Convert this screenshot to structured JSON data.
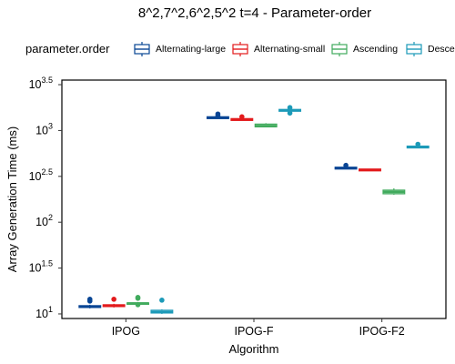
{
  "chart_data": {
    "type": "box",
    "title": "8^2,7^2,6^2,5^2 t=4 - Parameter-order",
    "xlabel": "Algorithm",
    "ylabel": "Array Generation Time (ms)",
    "yscale": "log10",
    "ylim_log10": [
      0.95,
      3.55
    ],
    "y_ticks": [
      {
        "log": 1.0,
        "base": "10",
        "exp": "1"
      },
      {
        "log": 1.5,
        "base": "10",
        "exp": "1.5"
      },
      {
        "log": 2.0,
        "base": "10",
        "exp": "2"
      },
      {
        "log": 2.5,
        "base": "10",
        "exp": "2.5"
      },
      {
        "log": 3.0,
        "base": "10",
        "exp": "3"
      },
      {
        "log": 3.5,
        "base": "10",
        "exp": "3.5"
      }
    ],
    "categories": [
      "IPOG",
      "IPOG-F",
      "IPOG-F2"
    ],
    "legend": {
      "title": "parameter.order",
      "position": "top"
    },
    "series": [
      {
        "name": "Alternating-large",
        "color": "#084594",
        "boxes": [
          {
            "q1": 1.07,
            "median": 1.08,
            "q3": 1.09,
            "whisker_low": 1.06,
            "whisker_high": 1.1,
            "outliers": [
              1.14,
              1.16
            ]
          },
          {
            "q1": 3.13,
            "median": 3.14,
            "q3": 3.15,
            "whisker_low": 3.13,
            "whisker_high": 3.15,
            "outliers": [
              3.16,
              3.18
            ]
          },
          {
            "q1": 2.58,
            "median": 2.59,
            "q3": 2.6,
            "whisker_low": 2.58,
            "whisker_high": 2.6,
            "outliers": [
              2.62
            ]
          }
        ]
      },
      {
        "name": "Alternating-small",
        "color": "#e31a1c",
        "boxes": [
          {
            "q1": 1.08,
            "median": 1.09,
            "q3": 1.1,
            "whisker_low": 1.07,
            "whisker_high": 1.11,
            "outliers": [
              1.16
            ]
          },
          {
            "q1": 3.11,
            "median": 3.12,
            "q3": 3.13,
            "whisker_low": 3.11,
            "whisker_high": 3.13,
            "outliers": [
              3.15
            ]
          },
          {
            "q1": 2.56,
            "median": 2.57,
            "q3": 2.58,
            "whisker_low": 2.56,
            "whisker_high": 2.58,
            "outliers": []
          }
        ]
      },
      {
        "name": "Ascending",
        "color": "#41ab5d",
        "boxes": [
          {
            "q1": 1.11,
            "median": 1.115,
            "q3": 1.12,
            "whisker_low": 1.1,
            "whisker_high": 1.13,
            "outliers": [
              1.1,
              1.17,
              1.18
            ]
          },
          {
            "q1": 3.04,
            "median": 3.05,
            "q3": 3.07,
            "whisker_low": 3.04,
            "whisker_high": 3.08,
            "outliers": []
          },
          {
            "q1": 2.31,
            "median": 2.33,
            "q3": 2.35,
            "whisker_low": 2.3,
            "whisker_high": 2.37,
            "outliers": []
          }
        ]
      },
      {
        "name": "Descending",
        "color": "#1c9ab8",
        "boxes": [
          {
            "q1": 1.01,
            "median": 1.02,
            "q3": 1.04,
            "whisker_low": 1.0,
            "whisker_high": 1.05,
            "outliers": [
              1.15
            ]
          },
          {
            "q1": 3.21,
            "median": 3.22,
            "q3": 3.23,
            "whisker_low": 3.2,
            "whisker_high": 3.24,
            "outliers": [
              3.19,
              3.25
            ]
          },
          {
            "q1": 2.81,
            "median": 2.82,
            "q3": 2.83,
            "whisker_low": 2.81,
            "whisker_high": 2.83,
            "outliers": [
              2.85
            ]
          }
        ]
      }
    ]
  }
}
